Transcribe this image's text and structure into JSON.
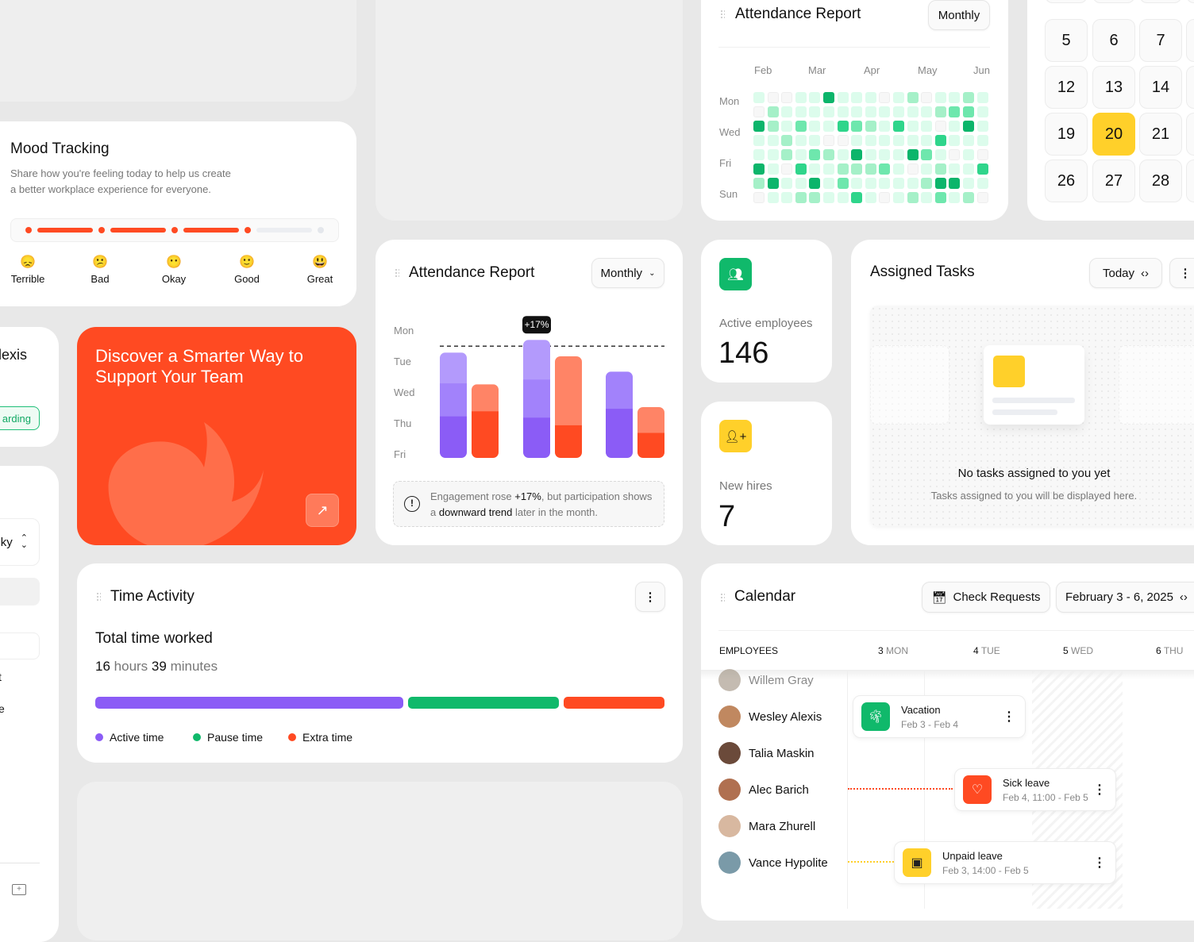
{
  "colors": {
    "accent": "#ff4a22",
    "purple": "#8b5cf6",
    "green": "#10b96b",
    "yellow": "#ffd02a"
  },
  "mood": {
    "title": "Mood Tracking",
    "desc1": "Share how you're feeling today to help us create",
    "desc2": "a better workplace experience for everyone.",
    "selected_index": 3,
    "options": [
      {
        "emoji": "😞",
        "label": "Terrible"
      },
      {
        "emoji": "😕",
        "label": "Bad"
      },
      {
        "emoji": "😶",
        "label": "Okay"
      },
      {
        "emoji": "🙂",
        "label": "Good"
      },
      {
        "emoji": "😃",
        "label": "Great"
      }
    ]
  },
  "left_partial": {
    "name": "lexis",
    "tag": "arding",
    "select_value": "ky",
    "line1": "t",
    "line2": "e"
  },
  "promo": {
    "title": "Discover a Smarter Way to Support Your Team"
  },
  "heatmap": {
    "title": "Attendance Report",
    "period": "Monthly",
    "months": [
      "Feb",
      "Mar",
      "Apr",
      "May",
      "Jun"
    ],
    "days": [
      "Mon",
      "Wed",
      "Fri",
      "Sun"
    ],
    "levels": [
      [
        1,
        0,
        0,
        1,
        1,
        5,
        1,
        1,
        1,
        0,
        1,
        2,
        0,
        1,
        1,
        2,
        1
      ],
      [
        0,
        2,
        1,
        1,
        1,
        1,
        1,
        1,
        1,
        1,
        1,
        1,
        1,
        2,
        3,
        3,
        1
      ],
      [
        5,
        2,
        1,
        3,
        1,
        1,
        4,
        3,
        2,
        1,
        4,
        1,
        1,
        0,
        1,
        5,
        1
      ],
      [
        1,
        1,
        2,
        1,
        1,
        0,
        0,
        1,
        1,
        1,
        1,
        1,
        1,
        4,
        1,
        1,
        1
      ],
      [
        1,
        1,
        2,
        1,
        3,
        2,
        1,
        5,
        1,
        1,
        1,
        5,
        3,
        1,
        0,
        1,
        0
      ],
      [
        5,
        1,
        0,
        4,
        1,
        1,
        2,
        2,
        2,
        3,
        1,
        0,
        1,
        2,
        1,
        1,
        4
      ],
      [
        2,
        5,
        1,
        1,
        5,
        1,
        3,
        1,
        1,
        1,
        1,
        1,
        2,
        5,
        5,
        1,
        1
      ],
      [
        0,
        1,
        1,
        2,
        2,
        1,
        1,
        4,
        1,
        0,
        1,
        2,
        1,
        3,
        1,
        2,
        0
      ]
    ]
  },
  "mini_calendar": {
    "rows": [
      [
        "5",
        "6",
        "7"
      ],
      [
        "12",
        "13",
        "14"
      ],
      [
        "19",
        "20",
        "21"
      ],
      [
        "26",
        "27",
        "28"
      ]
    ],
    "selected": "20"
  },
  "chart_data": {
    "type": "bar",
    "title": "Attendance Report",
    "period": "Monthly",
    "y_tick_labels": [
      "Mon",
      "Tue",
      "Wed",
      "Thu",
      "Fri"
    ],
    "ylim": [
      0,
      100
    ],
    "reference_line": 88,
    "badge": "+17%",
    "groups": [
      {
        "purple": [
          33,
          26,
          24
        ],
        "orange": [
          37,
          21
        ]
      },
      {
        "purple": [
          32,
          30,
          31
        ],
        "orange": [
          26,
          54
        ]
      },
      {
        "purple": [
          39,
          29
        ],
        "orange": [
          20,
          20
        ]
      }
    ],
    "note": {
      "pre": "Engagement rose ",
      "b1": "+17%",
      "mid": ", but participation shows a ",
      "b2": "downward trend",
      "post": " later in the month."
    }
  },
  "stats": {
    "active_label": "Active employees",
    "active_value": "146",
    "hires_label": "New hires",
    "hires_value": "7"
  },
  "tasks": {
    "title": "Assigned Tasks",
    "period": "Today",
    "empty_title": "No tasks assigned to you yet",
    "empty_desc": "Tasks assigned to you will be displayed here."
  },
  "time": {
    "title": "Time Activity",
    "subtitle": "Total time worked",
    "hours": "16",
    "hours_unit": "hours",
    "minutes": "39",
    "minutes_unit": "minutes",
    "segments": [
      {
        "label": "Active time",
        "share": 55,
        "color": "#8b5cf6"
      },
      {
        "label": "Pause time",
        "share": 27,
        "color": "#10b96b"
      },
      {
        "label": "Extra time",
        "share": 18,
        "color": "#ff4a22"
      }
    ]
  },
  "calendar": {
    "title": "Calendar",
    "check": "Check Requests",
    "range": "February 3 - 6, 2025",
    "col_header": "EMPLOYEES",
    "days": [
      {
        "n": "3",
        "d": "MON"
      },
      {
        "n": "4",
        "d": "TUE"
      },
      {
        "n": "5",
        "d": "WED"
      },
      {
        "n": "6",
        "d": "THU"
      }
    ],
    "employees": [
      "Willem Gray",
      "Wesley Alexis",
      "Talia Maskin",
      "Alec Barich",
      "Mara Zhurell",
      "Vance Hypolite"
    ],
    "events": [
      {
        "title": "Vacation",
        "dates": "Feb 3 - Feb 4"
      },
      {
        "title": "Sick leave",
        "dates": "Feb 4, 11:00 - Feb 5"
      },
      {
        "title": "Unpaid leave",
        "dates": "Feb 3, 14:00 - Feb 5"
      }
    ]
  }
}
